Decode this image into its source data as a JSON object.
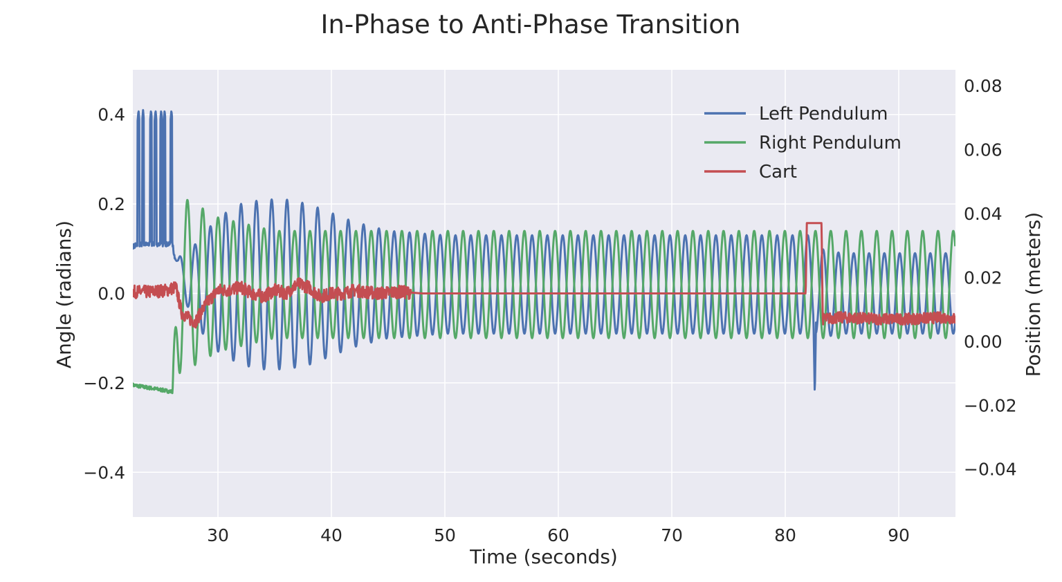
{
  "chart_data": {
    "type": "line",
    "title": "In-Phase to Anti-Phase Transition",
    "xlabel": "Time (seconds)",
    "ylabel": "Angle (radians)",
    "y2label": "Position (meters)",
    "xlim": [
      22.5,
      95
    ],
    "ylim": [
      -0.5,
      0.5
    ],
    "y2lim": [
      -0.055,
      0.085
    ],
    "xticks": [
      30,
      40,
      50,
      60,
      70,
      80,
      90
    ],
    "yticks": [
      -0.4,
      -0.2,
      0.0,
      0.2,
      0.4
    ],
    "ytick_labels": [
      "−0.4",
      "−0.2",
      "0.0",
      "0.2",
      "0.4"
    ],
    "y2ticks": [
      -0.04,
      -0.02,
      0.0,
      0.02,
      0.04,
      0.06,
      0.08
    ],
    "y2tick_labels": [
      "−0.04",
      "−0.02",
      "0.00",
      "0.02",
      "0.04",
      "0.06",
      "0.08"
    ],
    "grid": true,
    "legend_position": "top-right",
    "series": [
      {
        "name": "Left Pendulum",
        "axis": "left",
        "color": "#4c72b0",
        "description_points": {
          "t": [
            22.5,
            23.0,
            23.4,
            24.0,
            24.5,
            25.0,
            25.5,
            26.0,
            26.5,
            28.0,
            30.0,
            32.0,
            34.0,
            36.0,
            38.0,
            40.0,
            42.0,
            45.0,
            50.0,
            60.0,
            70.0,
            80.0,
            82.0,
            82.6,
            83.0,
            85.0,
            90.0,
            95.0
          ],
          "amplitude": [
            0.0,
            0.0,
            0.0,
            0.0,
            0.0,
            0.0,
            0.0,
            0.0,
            0.03,
            0.09,
            0.15,
            0.18,
            0.19,
            0.19,
            0.18,
            0.16,
            0.14,
            0.12,
            0.11,
            0.11,
            0.11,
            0.11,
            0.11,
            0.11,
            0.1,
            0.09,
            0.09,
            0.09
          ],
          "offset": [
            0.105,
            0.11,
            0.11,
            0.11,
            0.11,
            0.11,
            0.11,
            0.11,
            0.05,
            0.02,
            0.02,
            0.02,
            0.02,
            0.02,
            0.02,
            0.02,
            0.02,
            0.02,
            0.02,
            0.02,
            0.02,
            0.02,
            0.02,
            0.02,
            0.0,
            0.0,
            0.0,
            0.0
          ]
        },
        "spikes": [
          23.0,
          23.4,
          24.1,
          24.5,
          25.0,
          25.3,
          25.9
        ],
        "spike_peak": 0.41,
        "dip_time": 82.6,
        "dip_value": -0.23
      },
      {
        "name": "Right Pendulum",
        "axis": "left",
        "color": "#55a868",
        "description_points": {
          "t": [
            22.5,
            26.0,
            26.5,
            28.0,
            30.0,
            35.0,
            40.0,
            45.0,
            50.0,
            60.0,
            70.0,
            80.0,
            85.0,
            90.0,
            95.0
          ],
          "amplitude": [
            0.0,
            0.0,
            0.2,
            0.18,
            0.15,
            0.12,
            0.12,
            0.12,
            0.12,
            0.12,
            0.12,
            0.12,
            0.12,
            0.12,
            0.12
          ],
          "offset": [
            -0.205,
            -0.22,
            0.02,
            0.02,
            0.02,
            0.02,
            0.02,
            0.02,
            0.02,
            0.02,
            0.02,
            0.02,
            0.02,
            0.02,
            0.02
          ]
        }
      },
      {
        "name": "Cart",
        "axis": "right",
        "color": "#c44e52",
        "points": {
          "t": [
            22.5,
            24.0,
            25.5,
            26.3,
            26.8,
            27.5,
            28.0,
            29.0,
            30.0,
            31.0,
            32.0,
            33.0,
            34.0,
            35.0,
            36.0,
            37.0,
            38.0,
            39.0,
            40.0,
            41.0,
            42.0,
            44.0,
            46.0,
            48.0,
            50.0,
            55.0,
            60.0,
            65.0,
            70.0,
            75.0,
            80.0,
            81.8,
            81.9,
            83.2,
            83.3,
            85.0,
            88.0,
            91.0,
            94.0,
            95.0
          ],
          "value": [
            0.0155,
            0.0155,
            0.016,
            0.017,
            0.009,
            0.007,
            0.006,
            0.012,
            0.016,
            0.016,
            0.017,
            0.015,
            0.014,
            0.016,
            0.015,
            0.018,
            0.017,
            0.014,
            0.015,
            0.015,
            0.016,
            0.015,
            0.0155,
            0.015,
            0.015,
            0.015,
            0.015,
            0.015,
            0.015,
            0.015,
            0.015,
            0.015,
            0.037,
            0.037,
            0.007,
            0.0075,
            0.007,
            0.007,
            0.0075,
            0.007
          ]
        }
      }
    ]
  }
}
